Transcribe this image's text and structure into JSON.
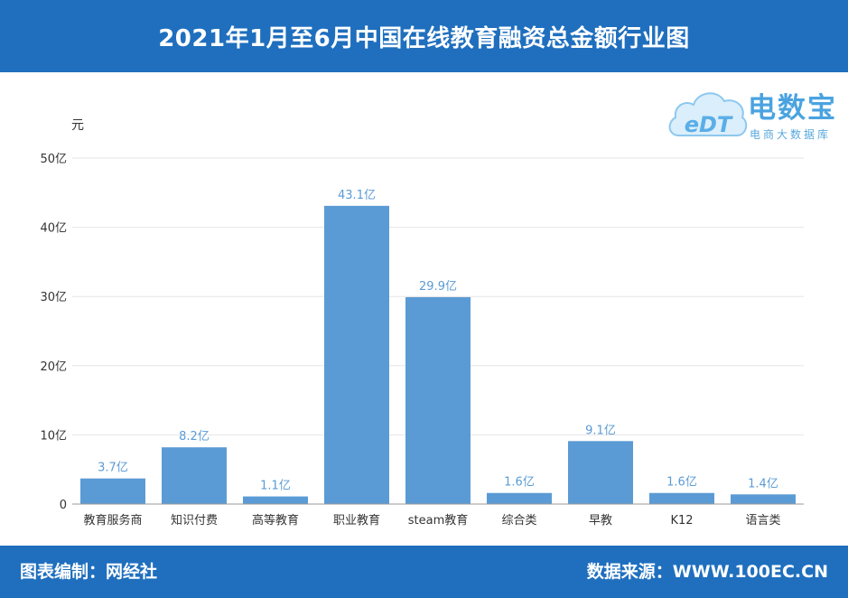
{
  "header": {
    "title": "2021年1月至6月中国在线教育融资总金额行业图"
  },
  "logo": {
    "name": "电数宝",
    "subtitle": "电商大数据库",
    "mark_text": "eDT"
  },
  "footer": {
    "left": "图表编制：网经社",
    "right": "数据来源：WWW.100EC.CN"
  },
  "colors": {
    "header_bg": "#1f6fbe",
    "bar": "#5b9bd5",
    "data_label": "#5b9bd5",
    "grid": "#e6e6e6",
    "axis_text": "#333333"
  },
  "chart_data": {
    "type": "bar",
    "title": "",
    "ylabel": "元",
    "xlabel": "",
    "categories": [
      "教育服务商",
      "知识付费",
      "高等教育",
      "职业教育",
      "steam教育",
      "综合类",
      "早教",
      "K12",
      "语言类"
    ],
    "values": [
      3.7,
      8.2,
      1.1,
      43.1,
      29.9,
      1.6,
      9.1,
      1.6,
      1.4
    ],
    "data_labels": [
      "3.7亿",
      "8.2亿",
      "1.1亿",
      "43.1亿",
      "29.9亿",
      "1.6亿",
      "9.1亿",
      "1.6亿",
      "1.4亿"
    ],
    "ylim": [
      0,
      50
    ],
    "y_ticks": [
      0,
      10,
      20,
      30,
      40,
      50
    ],
    "y_tick_labels": [
      "0",
      "10亿",
      "20亿",
      "30亿",
      "40亿",
      "50亿"
    ],
    "grid": true,
    "legend": "none"
  }
}
